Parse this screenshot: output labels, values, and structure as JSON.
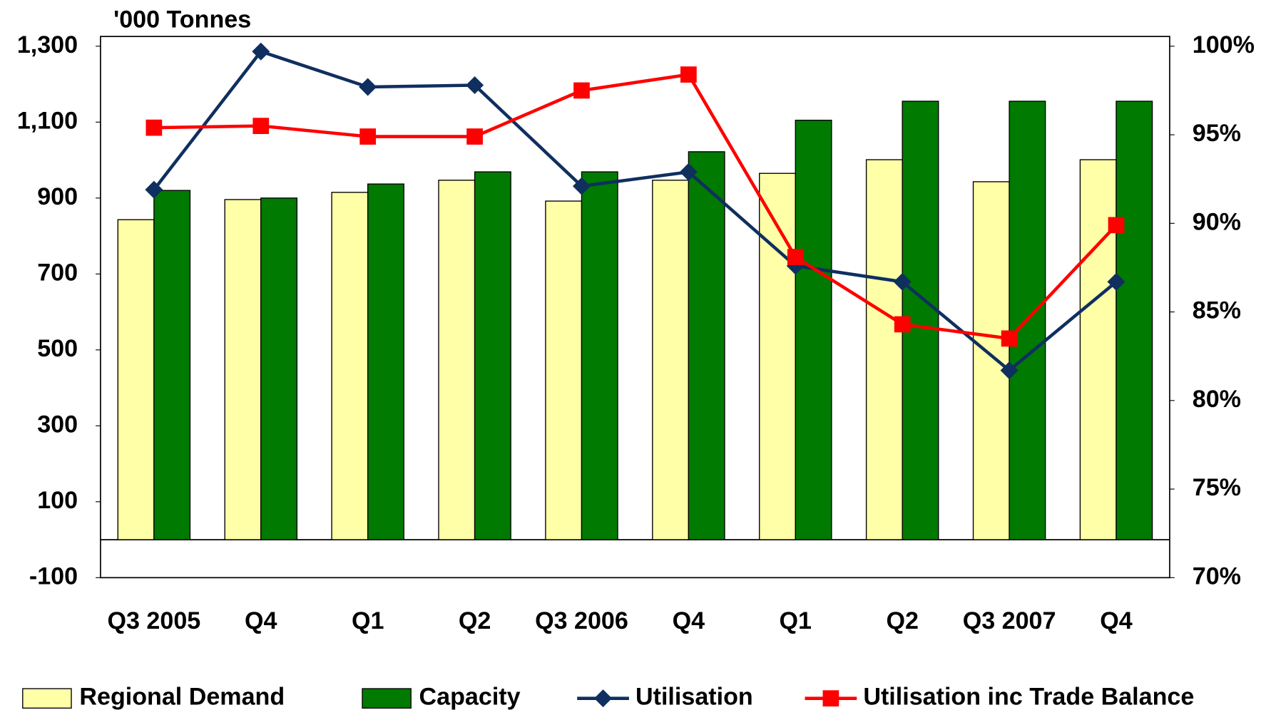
{
  "chart_data": {
    "type": "bar_line",
    "y_axis_label": "'000 Tonnes",
    "categories": [
      "Q3 2005",
      "Q4",
      "Q1",
      "Q2",
      "Q3 2006",
      "Q4",
      "Q1",
      "Q2",
      "Q3 2007",
      "Q4"
    ],
    "series": [
      {
        "name": "Regional Demand",
        "type": "bar",
        "color": "#ffffa8",
        "values": [
          843,
          896,
          915,
          947,
          892,
          947,
          965,
          1001,
          943,
          1001
        ]
      },
      {
        "name": "Capacity",
        "type": "bar",
        "color": "#007a00",
        "values": [
          920,
          900,
          937,
          969,
          969,
          1022,
          1105,
          1155,
          1155,
          1155
        ]
      },
      {
        "name": "Utilisation",
        "type": "line",
        "axis": "y2",
        "marker": "diamond",
        "color": "#0f2f5f",
        "values": [
          91.9,
          99.7,
          97.7,
          97.8,
          92.1,
          92.9,
          87.6,
          86.7,
          81.7,
          86.7
        ]
      },
      {
        "name": "Utilisation inc Trade Balance",
        "type": "line",
        "axis": "y2",
        "marker": "square",
        "color": "#ff0000",
        "values": [
          95.4,
          95.5,
          94.9,
          94.9,
          97.5,
          98.4,
          88.1,
          84.3,
          83.5,
          89.9
        ]
      }
    ],
    "ylim": [
      -100,
      1300
    ],
    "yticks": [
      -100,
      100,
      300,
      500,
      700,
      900,
      {
        "value": 1100,
        "label": "1,100"
      },
      {
        "value": 1300,
        "label": "1,300"
      }
    ],
    "y2lim": [
      70,
      100
    ],
    "y2ticks": [
      {
        "value": 70,
        "label": "70%"
      },
      {
        "value": 75,
        "label": "75%"
      },
      {
        "value": 80,
        "label": "80%"
      },
      {
        "value": 85,
        "label": "85%"
      },
      {
        "value": 90,
        "label": "90%"
      },
      {
        "value": 95,
        "label": "95%"
      },
      {
        "value": 100,
        "label": "100%"
      }
    ],
    "legend": "bottom"
  }
}
